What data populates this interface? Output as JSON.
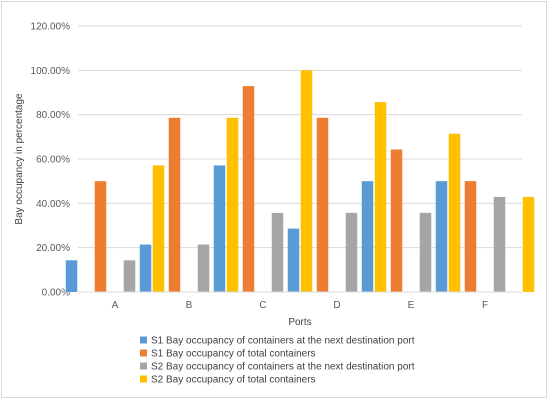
{
  "chart_data": {
    "type": "bar",
    "title": "",
    "xlabel": "Ports",
    "ylabel": "Bay occupancy in percentage",
    "categories": [
      "A",
      "B",
      "C",
      "D",
      "E",
      "F"
    ],
    "ylim": [
      0,
      120
    ],
    "yticks": [
      0,
      20,
      40,
      60,
      80,
      100,
      120
    ],
    "ytick_labels": [
      "0.00%",
      "20.00%",
      "40.00%",
      "60.00%",
      "80.00%",
      "100.00%",
      "120.00%"
    ],
    "grid": true,
    "legend_position": "bottom",
    "series": [
      {
        "name": "S1 Bay occupancy of containers at the next destination port",
        "color": "#5b9bd5",
        "values": [
          14.3,
          21.4,
          57.1,
          28.6,
          50.0,
          50.0
        ]
      },
      {
        "name": "S1 Bay occupancy of total containers",
        "color": "#ed7d31",
        "values": [
          50.0,
          78.6,
          92.9,
          78.6,
          64.3,
          50.0
        ]
      },
      {
        "name": "S2 Bay occupancy of containers at the next destination port",
        "color": "#a5a5a5",
        "values": [
          14.3,
          21.4,
          35.7,
          35.7,
          35.7,
          42.9
        ]
      },
      {
        "name": "S2 Bay occupancy of total containers",
        "color": "#ffc000",
        "values": [
          57.1,
          78.6,
          100.0,
          85.7,
          71.4,
          42.9
        ]
      }
    ]
  }
}
